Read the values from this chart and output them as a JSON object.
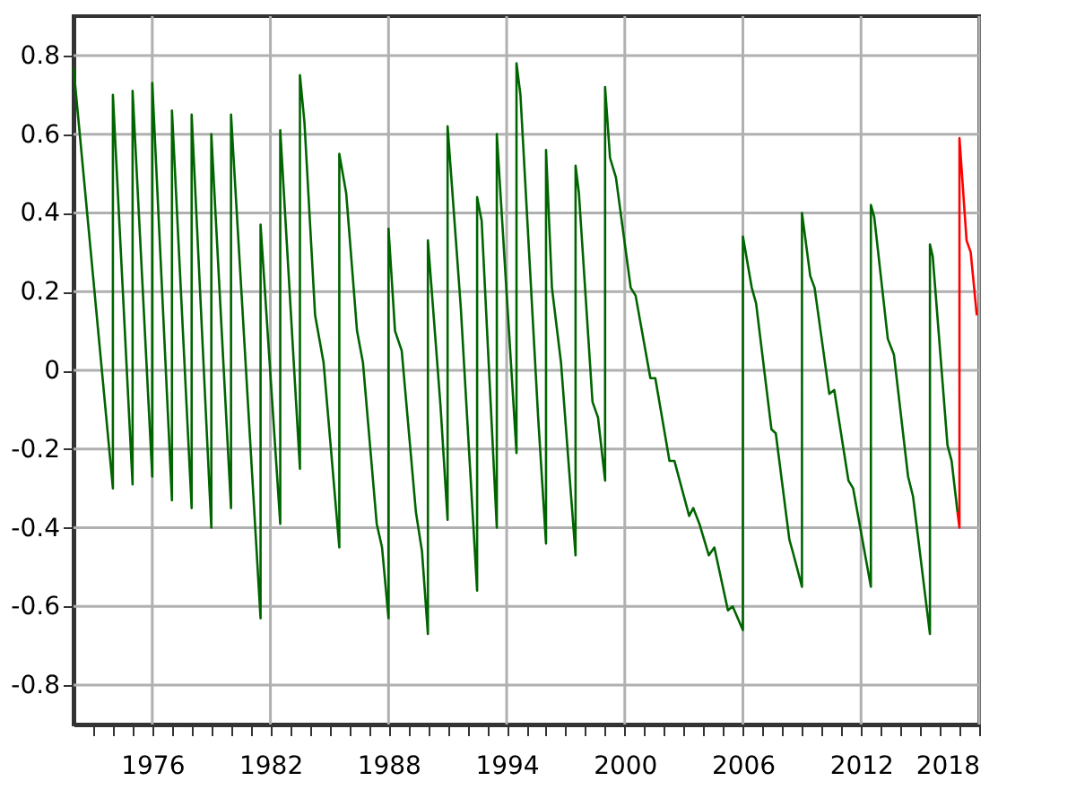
{
  "chart_data": {
    "type": "line",
    "xlim": [
      1972,
      2018
    ],
    "xticks": [
      {
        "value": 1973,
        "label": null
      },
      {
        "value": 1974,
        "label": null
      },
      {
        "value": 1975,
        "label": null
      },
      1976,
      {
        "value": 1977,
        "label": null
      },
      {
        "value": 1978,
        "label": null
      },
      {
        "value": 1979,
        "label": null
      },
      {
        "value": 1980,
        "label": null
      },
      {
        "value": 1981,
        "label": null
      },
      1982,
      {
        "value": 1983,
        "label": null
      },
      {
        "value": 1984,
        "label": null
      },
      {
        "value": 1985,
        "label": null
      },
      {
        "value": 1986,
        "label": null
      },
      {
        "value": 1987,
        "label": null
      },
      1988,
      {
        "value": 1989,
        "label": null
      },
      {
        "value": 1990,
        "label": null
      },
      {
        "value": 1991,
        "label": null
      },
      {
        "value": 1992,
        "label": null
      },
      {
        "value": 1993,
        "label": null
      },
      1994,
      {
        "value": 1995,
        "label": null
      },
      {
        "value": 1996,
        "label": null
      },
      {
        "value": 1997,
        "label": null
      },
      {
        "value": 1998,
        "label": null
      },
      {
        "value": 1999,
        "label": null
      },
      2000,
      {
        "value": 2001,
        "label": null
      },
      {
        "value": 2002,
        "label": null
      },
      {
        "value": 2003,
        "label": null
      },
      {
        "value": 2004,
        "label": null
      },
      {
        "value": 2005,
        "label": null
      },
      2006,
      {
        "value": 2007,
        "label": null
      },
      {
        "value": 2008,
        "label": null
      },
      {
        "value": 2009,
        "label": null
      },
      {
        "value": 2010,
        "label": null
      },
      {
        "value": 2011,
        "label": null
      },
      2012,
      {
        "value": 2013,
        "label": null
      },
      {
        "value": 2014,
        "label": null
      },
      {
        "value": 2015,
        "label": null
      },
      {
        "value": 2016,
        "label": null
      },
      {
        "value": 2017,
        "label": null
      },
      2018
    ],
    "ylim": [
      -0.9,
      0.9
    ],
    "yticks": [
      -0.8,
      -0.6,
      -0.4,
      -0.2,
      0,
      0.2,
      0.4,
      0.6,
      0.8
    ],
    "grid": true,
    "marker": "none",
    "line_style": "solid",
    "series": [
      {
        "color": "#006400",
        "x": [
          1972.0,
          1974.0,
          1974.0,
          1975.0,
          1975.0,
          1976.0,
          1976.0,
          1977.0,
          1977.0,
          1978.0,
          1978.0,
          1979.0,
          1979.0,
          1980.0,
          1980.0,
          1981.5,
          1981.5,
          1982.5,
          1982.5,
          1983.5,
          1983.5,
          1983.73,
          1984.27,
          1984.7,
          1985.5,
          1985.5,
          1985.85,
          1986.4,
          1986.7,
          1987.4,
          1987.67,
          1988.0,
          1988.0,
          1988.33,
          1988.67,
          1989.39,
          1989.7,
          1990.0,
          1990.0,
          1990.64,
          1991.0,
          1991.0,
          1991.67,
          1992.5,
          1992.5,
          1992.73,
          1993.5,
          1993.5,
          1994.5,
          1994.5,
          1994.7,
          1995.6,
          1996.0,
          1996.0,
          1996.3,
          1996.76,
          1997.5,
          1997.5,
          1997.67,
          1998.36,
          1998.64,
          1999.0,
          1999.0,
          1999.25,
          1999.55,
          2000.3,
          2000.55,
          2001.3,
          2001.55,
          2002.27,
          2002.52,
          2003.27,
          2003.48,
          2003.79,
          2004.27,
          2004.55,
          2005.24,
          2005.48,
          2006.0,
          2006.0,
          2006.45,
          2006.67,
          2007.45,
          2007.67,
          2008.36,
          2008.58,
          2009.0,
          2009.0,
          2009.42,
          2009.64,
          2010.39,
          2010.64,
          2011.36,
          2011.6,
          2012.5,
          2012.5,
          2012.67,
          2013.36,
          2013.67,
          2014.39,
          2014.64,
          2015.5,
          2015.5,
          2015.64,
          2016.39,
          2016.6,
          2016.9
        ],
        "values": [
          0.77,
          -0.3,
          0.7,
          -0.29,
          0.71,
          -0.27,
          0.73,
          -0.33,
          0.66,
          -0.35,
          0.65,
          -0.4,
          0.6,
          -0.35,
          0.65,
          -0.63,
          0.37,
          -0.39,
          0.61,
          -0.25,
          0.75,
          0.63,
          0.14,
          0.02,
          -0.45,
          0.55,
          0.45,
          0.1,
          0.02,
          -0.39,
          -0.45,
          -0.63,
          0.36,
          0.1,
          0.05,
          -0.36,
          -0.46,
          -0.67,
          0.33,
          -0.09,
          -0.38,
          0.62,
          0.16,
          -0.56,
          0.44,
          0.38,
          -0.4,
          0.6,
          -0.21,
          0.78,
          0.7,
          -0.12,
          -0.44,
          0.56,
          0.21,
          0.02,
          -0.47,
          0.52,
          0.45,
          -0.08,
          -0.12,
          -0.28,
          0.72,
          0.54,
          0.49,
          0.21,
          0.19,
          -0.02,
          -0.02,
          -0.23,
          -0.23,
          -0.37,
          -0.35,
          -0.39,
          -0.47,
          -0.45,
          -0.61,
          -0.6,
          -0.66,
          0.34,
          0.21,
          0.17,
          -0.15,
          -0.16,
          -0.43,
          -0.47,
          -0.55,
          0.4,
          0.24,
          0.21,
          -0.06,
          -0.05,
          -0.28,
          -0.3,
          -0.55,
          0.42,
          0.39,
          0.08,
          0.04,
          -0.27,
          -0.32,
          -0.67,
          0.32,
          0.29,
          -0.19,
          -0.23,
          -0.36
        ]
      },
      {
        "color": "#ff0000",
        "x": [
          2016.9,
          2017.0,
          2017.0,
          2017.36,
          2017.57,
          2017.88
        ],
        "values": [
          -0.36,
          -0.4,
          0.59,
          0.33,
          0.3,
          0.14
        ]
      }
    ]
  }
}
